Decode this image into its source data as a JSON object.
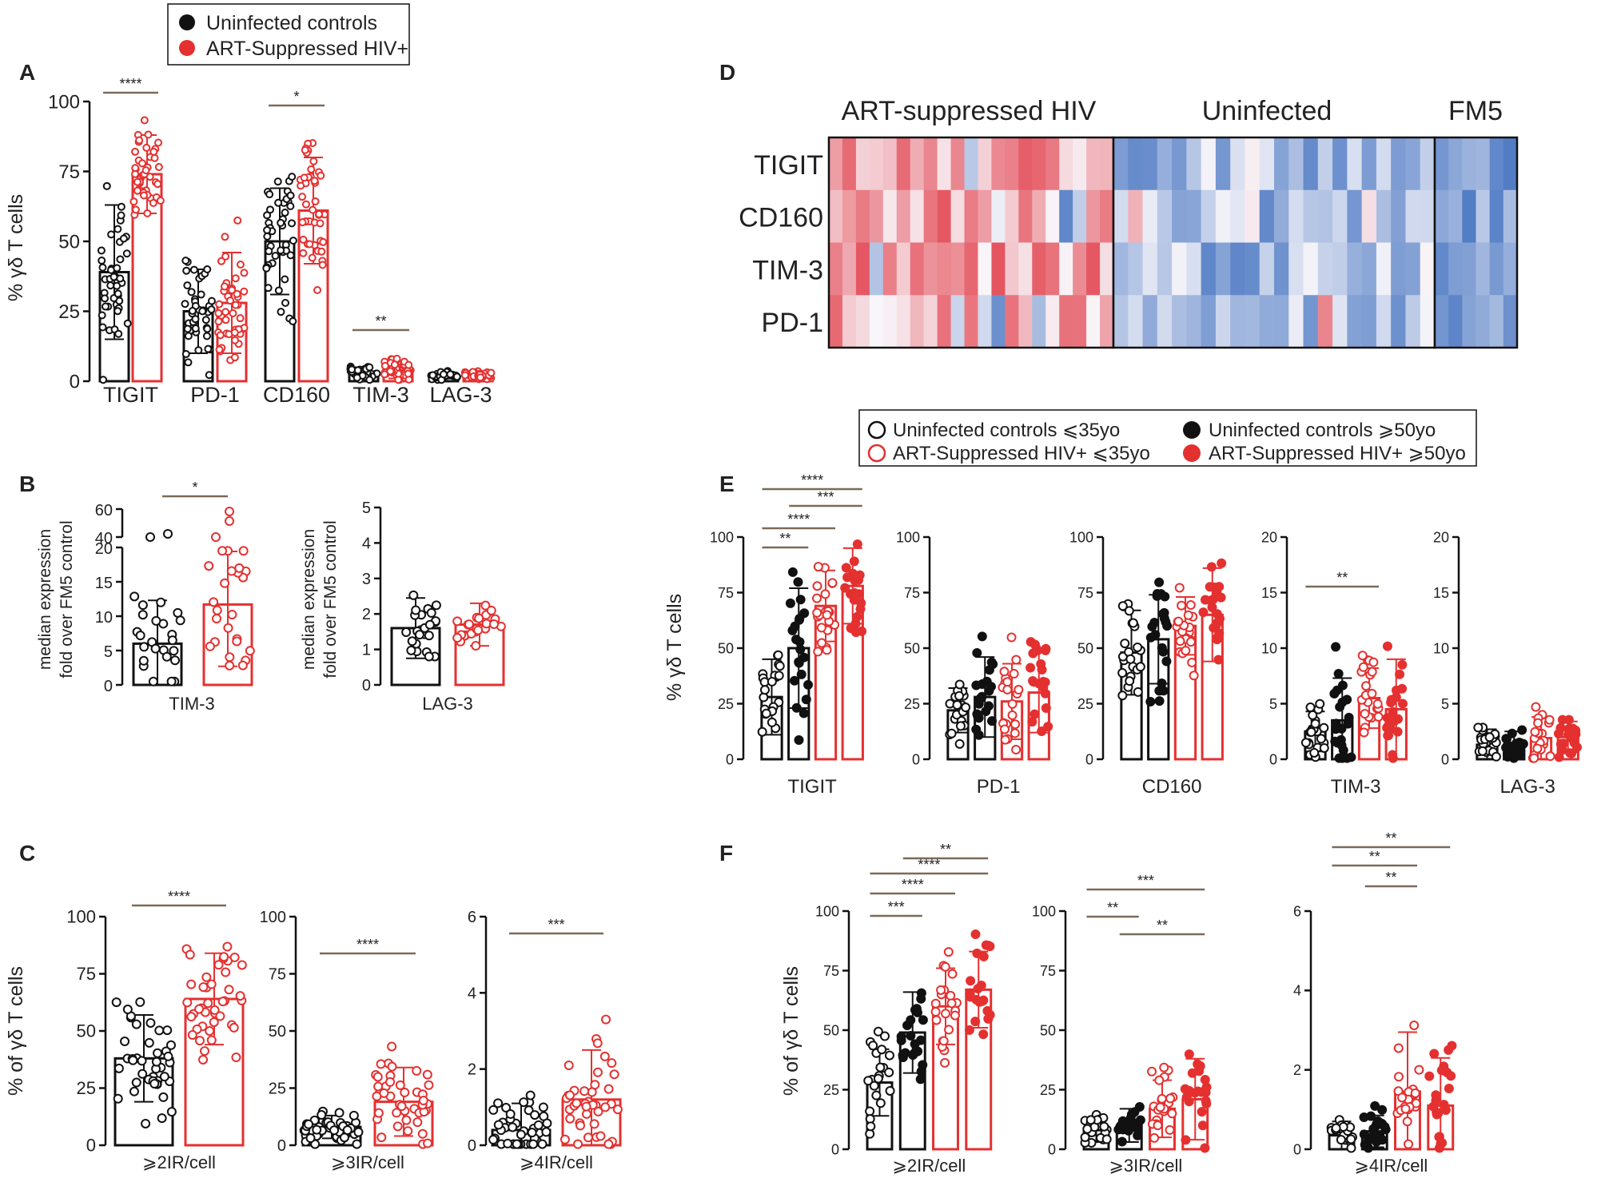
{
  "colors": {
    "black": "#111111",
    "red": "#e53030",
    "sig_line": "#7a6a5a",
    "heat_blue": "#3f6fbf",
    "heat_red": "#e0303c"
  },
  "legends": {
    "top": [
      "Uninfected controls",
      "ART-Suppressed HIV+"
    ],
    "age": [
      "Uninfected controls ⩽35yo",
      "Uninfected controls ⩾50yo",
      "ART-Suppressed HIV+ ⩽35yo",
      "ART-Suppressed HIV+ ⩾50yo"
    ]
  },
  "panel_letters": [
    "A",
    "B",
    "C",
    "D",
    "E",
    "F"
  ],
  "chart_data": [
    {
      "id": "A",
      "type": "bar",
      "ylabel": "% γδ T cells",
      "ylim": [
        0,
        100
      ],
      "yticks": [
        0,
        25,
        50,
        75,
        100
      ],
      "categories": [
        "TIGIT",
        "PD-1",
        "CD160",
        "TIM-3",
        "LAG-3"
      ],
      "series": [
        {
          "name": "Uninfected controls",
          "values": [
            39,
            25,
            50,
            3,
            2
          ],
          "sd": [
            24,
            15,
            19,
            2,
            1
          ]
        },
        {
          "name": "ART-Suppressed HIV+",
          "values": [
            74,
            28,
            61,
            4,
            2
          ],
          "sd": [
            14,
            18,
            19,
            3,
            1
          ]
        }
      ],
      "significance": [
        {
          "category": "TIGIT",
          "label": "****"
        },
        {
          "category": "CD160",
          "label": "*"
        },
        {
          "category": "TIM-3",
          "label": "**"
        }
      ]
    },
    {
      "id": "B1",
      "type": "bar",
      "ylabel": "median expression fold over FM5 control",
      "xlabel": "TIM-3",
      "ylim": [
        0,
        60
      ],
      "yticks": [
        "0",
        "5",
        "10",
        "15",
        "20",
        "40",
        "60"
      ],
      "axis_break": [
        20,
        40
      ],
      "series": [
        {
          "name": "Uninfected controls",
          "values": [
            6
          ],
          "sd": [
            6.3
          ]
        },
        {
          "name": "ART-Suppressed HIV+",
          "values": [
            11.7
          ],
          "sd": [
            9
          ]
        }
      ],
      "significance": [
        {
          "label": "*"
        }
      ]
    },
    {
      "id": "B2",
      "type": "bar",
      "ylabel": "median expression fold over FM5 control",
      "xlabel": "LAG-3",
      "ylim": [
        0,
        5
      ],
      "yticks": [
        0,
        1,
        2,
        3,
        4,
        5
      ],
      "series": [
        {
          "name": "Uninfected controls",
          "values": [
            1.6
          ],
          "sd": [
            0.85
          ]
        },
        {
          "name": "ART-Suppressed HIV+",
          "values": [
            1.7
          ],
          "sd": [
            0.6
          ]
        }
      ]
    },
    {
      "id": "C1",
      "type": "bar",
      "ylabel": "% of γδ T cells",
      "xlabel": "⩾2IR/cell",
      "ylim": [
        0,
        100
      ],
      "yticks": [
        0,
        25,
        50,
        75,
        100
      ],
      "series": [
        {
          "name": "Uninfected controls",
          "values": [
            38
          ],
          "sd": [
            19
          ]
        },
        {
          "name": "ART-Suppressed HIV+",
          "values": [
            64
          ],
          "sd": [
            20
          ]
        }
      ],
      "significance": [
        {
          "label": "****"
        }
      ]
    },
    {
      "id": "C2",
      "type": "bar",
      "xlabel": "⩾3IR/cell",
      "ylim": [
        0,
        100
      ],
      "yticks": [
        0,
        25,
        50,
        75,
        100
      ],
      "series": [
        {
          "name": "Uninfected controls",
          "values": [
            8
          ],
          "sd": [
            5
          ]
        },
        {
          "name": "ART-Suppressed HIV+",
          "values": [
            19
          ],
          "sd": [
            15
          ]
        }
      ],
      "significance": [
        {
          "label": "****"
        }
      ]
    },
    {
      "id": "C3",
      "type": "bar",
      "xlabel": "⩾4IR/cell",
      "ylim": [
        0,
        6
      ],
      "yticks": [
        0,
        2,
        4,
        6
      ],
      "series": [
        {
          "name": "Uninfected controls",
          "values": [
            0.4
          ],
          "sd": [
            0.7
          ]
        },
        {
          "name": "ART-Suppressed HIV+",
          "values": [
            1.2
          ],
          "sd": [
            1.3
          ]
        }
      ],
      "significance": [
        {
          "label": "***"
        }
      ]
    },
    {
      "id": "D",
      "type": "heatmap",
      "groups": [
        "ART-suppressed HIV",
        "Uninfected",
        "FM5"
      ],
      "rows": [
        "TIGIT",
        "CD160",
        "TIM-3",
        "PD-1"
      ],
      "columns_per_group": [
        21,
        22,
        6
      ],
      "scale": "blue (low) to red (high)"
    },
    {
      "id": "E",
      "type": "bar",
      "ylabel": "% γδ T cells",
      "groups_order": [
        "Uninfected controls ⩽35yo",
        "Uninfected controls ⩾50yo",
        "ART-Suppressed HIV+ ⩽35yo",
        "ART-Suppressed HIV+ ⩾50yo"
      ],
      "subplots": [
        {
          "marker": "TIGIT",
          "ylim": [
            0,
            100
          ],
          "yticks": [
            0,
            25,
            50,
            75,
            100
          ],
          "values": [
            28,
            50,
            69,
            78
          ],
          "sd": [
            17,
            27,
            16,
            17
          ],
          "significance": [
            {
              "pair": [
                0,
                1
              ],
              "label": "**"
            },
            {
              "pair": [
                0,
                2
              ],
              "label": "****"
            },
            {
              "pair": [
                1,
                3
              ],
              "label": "***"
            },
            {
              "pair": [
                0,
                3
              ],
              "label": "****"
            }
          ]
        },
        {
          "marker": "PD-1",
          "ylim": [
            0,
            100
          ],
          "yticks": [
            0,
            25,
            50,
            75,
            100
          ],
          "values": [
            22,
            28,
            26,
            30
          ],
          "sd": [
            10,
            18,
            17,
            18
          ]
        },
        {
          "marker": "CD160",
          "ylim": [
            0,
            100
          ],
          "yticks": [
            0,
            25,
            50,
            75,
            100
          ],
          "values": [
            48,
            54,
            60,
            65
          ],
          "sd": [
            19,
            20,
            13,
            21
          ]
        },
        {
          "marker": "TIM-3",
          "ylim": [
            0,
            20
          ],
          "yticks": [
            0,
            5,
            10,
            15,
            20
          ],
          "values": [
            2.5,
            3.5,
            5.5,
            4.5
          ],
          "sd": [
            1.8,
            3.8,
            2.7,
            4.5
          ],
          "significance": [
            {
              "pair": [
                0,
                2
              ],
              "label": "**"
            }
          ]
        },
        {
          "marker": "LAG-3",
          "ylim": [
            0,
            20
          ],
          "yticks": [
            0,
            5,
            10,
            15,
            20
          ],
          "values": [
            1.3,
            1.3,
            1.9,
            2.0
          ],
          "sd": [
            1.4,
            1.2,
            1.9,
            1.4
          ]
        }
      ]
    },
    {
      "id": "F",
      "type": "bar",
      "ylabel": "% of γδ T cells",
      "subplots": [
        {
          "marker": "⩾2IR/cell",
          "ylim": [
            0,
            100
          ],
          "yticks": [
            0,
            25,
            50,
            75,
            100
          ],
          "values": [
            28,
            49,
            60,
            67
          ],
          "sd": [
            14,
            17,
            16,
            16
          ],
          "significance": [
            {
              "pair": [
                0,
                1
              ],
              "label": "***"
            },
            {
              "pair": [
                0,
                2
              ],
              "label": "****"
            },
            {
              "pair": [
                1,
                3
              ],
              "label": "**"
            },
            {
              "pair": [
                0,
                3
              ],
              "label": "****"
            }
          ]
        },
        {
          "marker": "⩾3IR/cell",
          "ylim": [
            0,
            100
          ],
          "yticks": [
            0,
            25,
            50,
            75,
            100
          ],
          "values": [
            8,
            10,
            17,
            21
          ],
          "sd": [
            5,
            7,
            12,
            17
          ],
          "significance": [
            {
              "pair": [
                0,
                1
              ],
              "label": "**"
            },
            {
              "pair": [
                1,
                3
              ],
              "label": "**"
            },
            {
              "pair": [
                0,
                3
              ],
              "label": "***"
            }
          ]
        },
        {
          "marker": "⩾4IR/cell",
          "ylim": [
            0,
            6
          ],
          "yticks": [
            0,
            2,
            4,
            6
          ],
          "values": [
            0.35,
            0.45,
            1.45,
            1.1
          ],
          "sd": [
            0.35,
            0.4,
            1.5,
            1.2
          ],
          "significance": [
            {
              "pair": [
                1,
                2
              ],
              "label": "**"
            },
            {
              "pair": [
                0,
                2
              ],
              "label": "**"
            },
            {
              "pair": [
                0,
                3
              ],
              "label": "**"
            }
          ]
        }
      ]
    }
  ]
}
